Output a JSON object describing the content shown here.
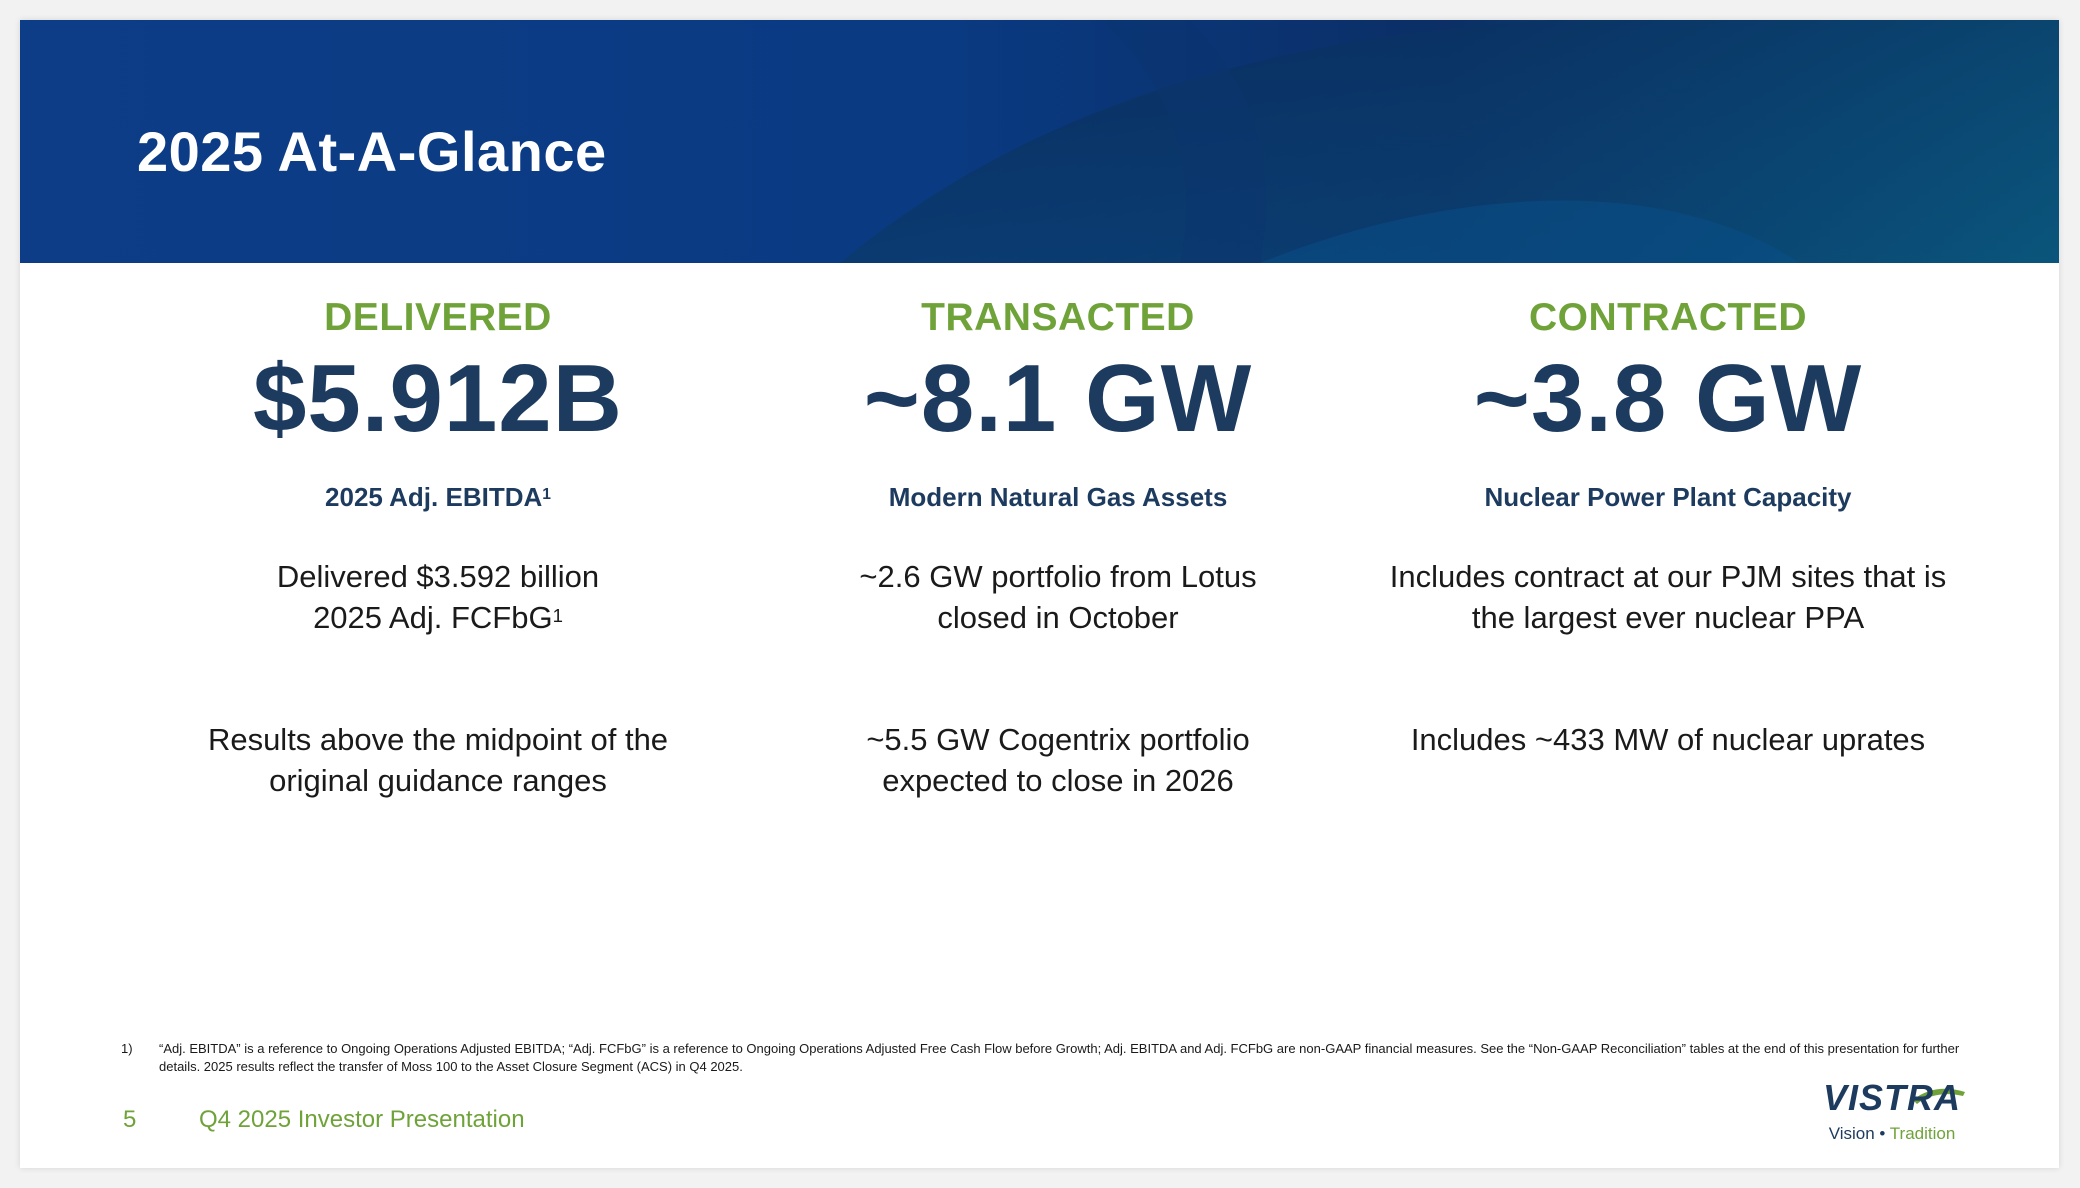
{
  "slide": {
    "title": "2025 At-A-Glance",
    "columns": [
      {
        "heading": "DELIVERED",
        "metric": "$5.912B",
        "caption": "2025 Adj. EBITDA",
        "caption_sup": "1",
        "text1_line1": "Delivered $3.592 billion",
        "text1_line2": "2025 Adj. FCFbG",
        "text1_sup": "1",
        "text2_line1": "Results above the midpoint of the",
        "text2_line2": "original guidance ranges"
      },
      {
        "heading": "TRANSACTED",
        "metric": "~8.1 GW",
        "caption": "Modern Natural Gas Assets",
        "text1_line1": "~2.6 GW portfolio from Lotus",
        "text1_line2": "closed in October",
        "text2_line1": "~5.5 GW Cogentrix portfolio",
        "text2_line2": "expected to close in 2026"
      },
      {
        "heading": "CONTRACTED",
        "metric": "~3.8 GW",
        "caption": "Nuclear Power Plant Capacity",
        "text1_line1": "Includes contract at our PJM sites that is",
        "text1_line2": "the largest ever nuclear PPA",
        "text2_line1": "Includes ~433 MW of nuclear uprates"
      }
    ]
  },
  "footnote": {
    "number": "1)",
    "text": "“Adj. EBITDA” is a reference to Ongoing Operations Adjusted EBITDA; “Adj. FCFbG” is a reference to Ongoing Operations Adjusted Free Cash Flow before Growth; Adj. EBITDA and Adj. FCFbG are non-GAAP financial measures. See the “Non-GAAP Reconciliation” tables at the end of this presentation for further details. 2025 results reflect the transfer of Moss 100 to the Asset Closure Segment (ACS) in Q4 2025."
  },
  "footer": {
    "page_number": "5",
    "deck_name": "Q4 2025 Investor Presentation"
  },
  "logo": {
    "wordmark": "VISTRA",
    "tagline_vision": "Vision",
    "tagline_dot": "•",
    "tagline_tradition": "Tradition"
  },
  "colors": {
    "accent_green": "#6fa33a",
    "navy": "#1d3a5f",
    "banner_start": "#0b3f8a",
    "banner_end": "#0a6680"
  }
}
